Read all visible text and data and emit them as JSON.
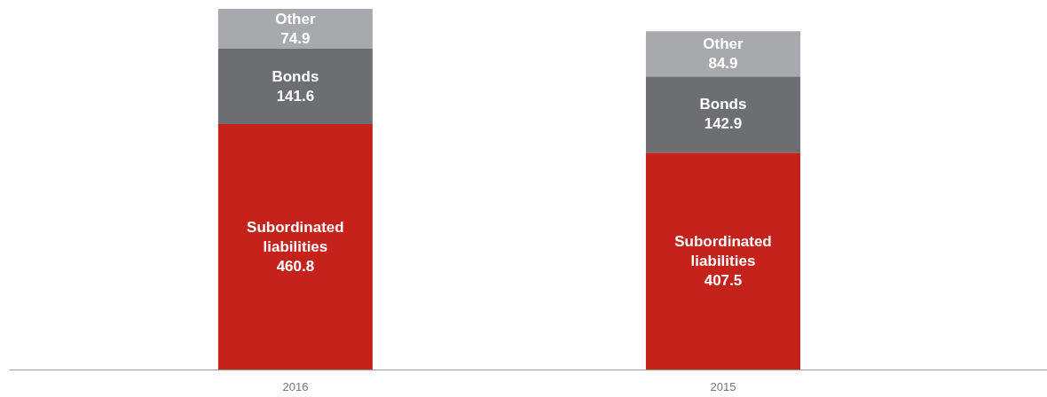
{
  "chart_data": {
    "type": "bar",
    "stacked": true,
    "categories": [
      "2016",
      "2015"
    ],
    "series": [
      {
        "name": "Subordinated liabilities",
        "color": "#c5221c",
        "values": [
          460.8,
          407.5
        ]
      },
      {
        "name": "Bonds",
        "color": "#6d6e72",
        "values": [
          141.6,
          142.9
        ]
      },
      {
        "name": "Other",
        "color": "#a8a9ad",
        "values": [
          74.9,
          84.9
        ]
      }
    ],
    "data_labels": true,
    "tick_labels": "x"
  }
}
